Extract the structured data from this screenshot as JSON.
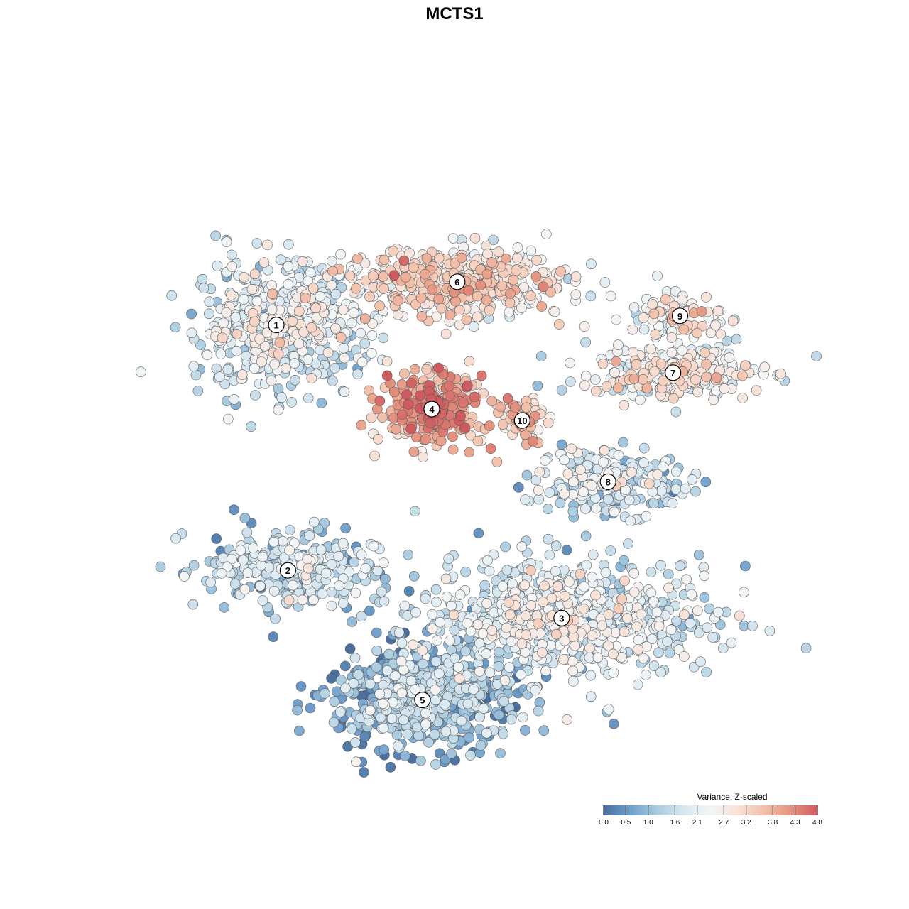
{
  "chart_data": {
    "type": "scatter",
    "title": "MCTS1",
    "xlabel": "",
    "ylabel": "",
    "grid": false,
    "axes": false,
    "legend": {
      "title": "Variance, Z-scaled",
      "position": "bottom-right",
      "range": [
        0.0,
        4.8
      ],
      "ticks": [
        0.0,
        0.5,
        1.0,
        1.6,
        2.1,
        2.7,
        3.2,
        3.8,
        4.3,
        4.8
      ],
      "tick_labels": [
        "0.0",
        "0.5",
        "1.0",
        "1.6",
        "2.1",
        "2.7",
        "3.2",
        "3.8",
        "4.3",
        "4.8"
      ],
      "colors": [
        "#4a6f9f",
        "#6f9fcc",
        "#a9cbe0",
        "#d7e7f0",
        "#f3f6f7",
        "#f8e2d8",
        "#f2c0aa",
        "#e59480",
        "#cf5a5f"
      ]
    },
    "clusters": [
      {
        "label": "1",
        "x": -8.6,
        "y": 5.7,
        "spread": [
          3.2,
          2.5
        ],
        "n": 520,
        "mean": 2.0
      },
      {
        "label": "6",
        "x": -0.8,
        "y": 7.6,
        "spread": [
          4.4,
          1.4
        ],
        "n": 470,
        "mean": 2.9
      },
      {
        "label": "9",
        "x": 8.8,
        "y": 6.1,
        "spread": [
          1.9,
          0.9
        ],
        "n": 95,
        "mean": 2.7
      },
      {
        "label": "7",
        "x": 8.5,
        "y": 3.6,
        "spread": [
          3.4,
          1.1
        ],
        "n": 260,
        "mean": 2.5
      },
      {
        "label": "4",
        "x": -1.9,
        "y": 2.0,
        "spread": [
          2.0,
          1.4
        ],
        "n": 330,
        "mean": 3.9
      },
      {
        "label": "10",
        "x": 2.0,
        "y": 1.5,
        "spread": [
          0.8,
          0.8
        ],
        "n": 70,
        "mean": 3.3
      },
      {
        "label": "8",
        "x": 5.7,
        "y": -1.2,
        "spread": [
          3.1,
          1.3
        ],
        "n": 210,
        "mean": 1.8
      },
      {
        "label": "2",
        "x": -8.1,
        "y": -5.1,
        "spread": [
          3.4,
          1.6
        ],
        "n": 300,
        "mean": 1.6
      },
      {
        "label": "3",
        "x": 3.7,
        "y": -7.2,
        "spread": [
          5.8,
          2.4
        ],
        "n": 720,
        "mean": 2.0
      },
      {
        "label": "5",
        "x": -2.3,
        "y": -10.8,
        "spread": [
          3.5,
          2.1
        ],
        "n": 600,
        "mean": 1.1
      }
    ],
    "xlim": [
      -15,
      15
    ],
    "ylim": [
      -15,
      15
    ]
  }
}
